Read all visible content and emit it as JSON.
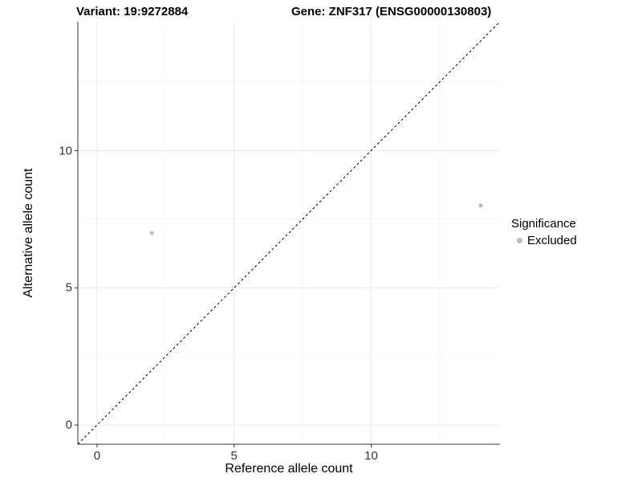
{
  "titles": {
    "variant": "Variant: 19:9272884",
    "gene": "Gene: ZNF317 (ENSG00000130803)"
  },
  "legend": {
    "title": "Significance",
    "items": [
      {
        "label": "Excluded",
        "color": "#bcbcbc"
      }
    ]
  },
  "colors": {
    "background": "#ffffff",
    "axis_line": "#333333",
    "tick_label": "#333333",
    "grid_major": "#ebebeb",
    "grid_minor": "#f5f5f5",
    "identity_line": "#000000",
    "point": "#bcbcbc"
  },
  "chart_data": {
    "type": "scatter",
    "title": "Variant: 19:9272884 — Gene: ZNF317 (ENSG00000130803)",
    "xlabel": "Reference allele count",
    "ylabel": "Alternative allele count",
    "xlim": [
      -0.7,
      14.7
    ],
    "ylim": [
      -0.7,
      14.7
    ],
    "x_ticks": [
      0,
      5,
      10
    ],
    "y_ticks": [
      0,
      5,
      10
    ],
    "x_minor_gridlines": [
      2.5,
      7.5,
      12.5
    ],
    "y_minor_gridlines": [
      2.5,
      7.5,
      12.5
    ],
    "grid": true,
    "legend_position": "right",
    "series": [
      {
        "name": "Excluded",
        "points": [
          {
            "x": 2,
            "y": 7
          },
          {
            "x": 14,
            "y": 8
          }
        ]
      }
    ],
    "identity_line": {
      "style": "dashed",
      "from": [
        -0.7,
        -0.7
      ],
      "to": [
        14.7,
        14.7
      ]
    }
  }
}
